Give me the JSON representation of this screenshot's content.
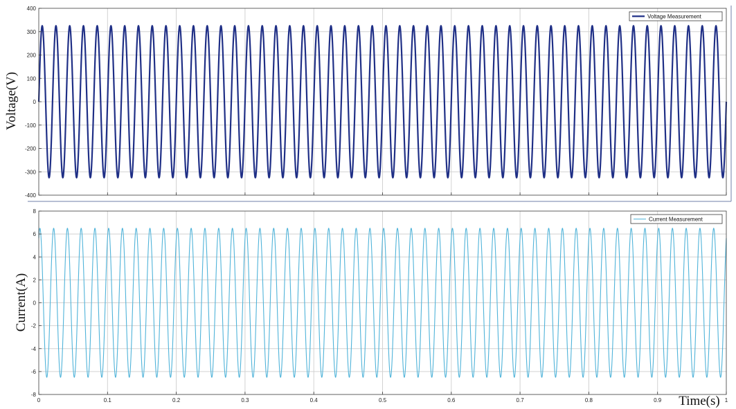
{
  "chart_data": [
    {
      "type": "line",
      "ylabel": "Voltage(V)",
      "xlabel": "",
      "xlim": [
        0,
        1
      ],
      "ylim": [
        -400,
        400
      ],
      "xticks": [
        0,
        0.1,
        0.2,
        0.3,
        0.4,
        0.5,
        0.6,
        0.7,
        0.8,
        0.9,
        1
      ],
      "xtick_labels": [
        "",
        "",
        "",
        "",
        "",
        "",
        "",
        "",
        "",
        "",
        ""
      ],
      "yticks": [
        -400,
        -300,
        -200,
        -100,
        0,
        100,
        200,
        300,
        400
      ],
      "ytick_labels": [
        "-400",
        "-300",
        "-200",
        "-100",
        "0",
        "100",
        "200",
        "300",
        "400"
      ],
      "grid": true,
      "legend_position": "top-right",
      "series": [
        {
          "name": "Voltage Measurement",
          "color": "#1f2f86",
          "waveform": "sine",
          "amplitude": 325,
          "frequency_hz": 50,
          "phase_deg": 0,
          "sample_points": {
            "x": [
              0,
              0.005,
              0.01,
              0.015,
              0.02
            ],
            "y": [
              0,
              325,
              0,
              -325,
              0
            ]
          }
        }
      ]
    },
    {
      "type": "line",
      "ylabel": "Current(A)",
      "xlabel": "Time(s)",
      "xlim": [
        0,
        1
      ],
      "ylim": [
        -8,
        8
      ],
      "xticks": [
        0,
        0.1,
        0.2,
        0.3,
        0.4,
        0.5,
        0.6,
        0.7,
        0.8,
        0.9,
        1
      ],
      "xtick_labels": [
        "0",
        "0.1",
        "0.2",
        "0.3",
        "0.4",
        "0.5",
        "0.6",
        "0.7",
        "0.8",
        "0.9",
        "1"
      ],
      "yticks": [
        -8,
        -6,
        -4,
        -2,
        0,
        2,
        4,
        6,
        8
      ],
      "ytick_labels": [
        "-8",
        "-6",
        "-4",
        "-2",
        "0",
        "2",
        "4",
        "6",
        "8"
      ],
      "grid": true,
      "legend_position": "top-right",
      "series": [
        {
          "name": "Current Measurement",
          "color": "#4fb3d9",
          "waveform": "sine",
          "amplitude": 6.5,
          "frequency_hz": 50,
          "phase_deg": 60,
          "sample_points": {
            "x": [
              0,
              0.005,
              0.01,
              0.015,
              0.02
            ],
            "y": [
              5.63,
              3.25,
              -5.63,
              -3.25,
              5.63
            ]
          }
        }
      ]
    }
  ]
}
